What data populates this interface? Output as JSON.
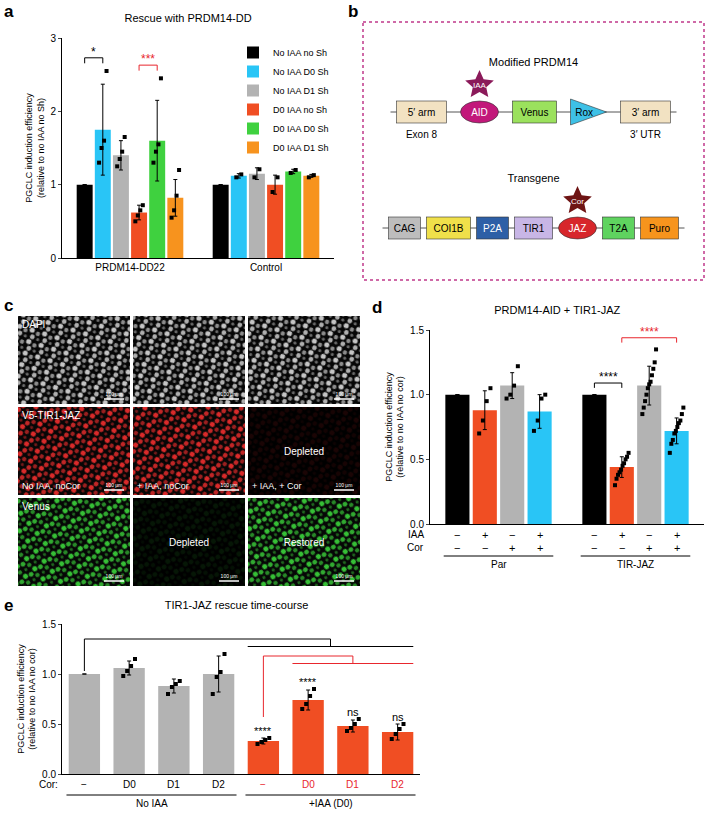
{
  "chart_data": [
    {
      "panel": "a",
      "type": "bar",
      "title": "Rescue with PRDM14-DD",
      "y_label": [
        "PGCLC induction efficiency",
        "(relative to no IAA no Sh)"
      ],
      "categories": [
        "PRDM14-DD22",
        "Control"
      ],
      "ylim": [
        0,
        3
      ],
      "yticks": [
        0,
        1,
        2,
        3
      ],
      "legend": "upper right",
      "series": [
        {
          "name": "No IAA no Sh",
          "color": "#000000",
          "values": [
            1.0,
            1.0
          ],
          "error": [
            0,
            0
          ],
          "points": [
            null,
            null
          ]
        },
        {
          "name": "No IAA D0 Sh",
          "color": "#29c5f6",
          "values": [
            1.75,
            1.12
          ],
          "error": [
            0.62,
            0.03
          ],
          "points": [
            [
              1.3,
              1.5,
              1.6,
              2.55
            ],
            [
              1.1,
              1.14
            ]
          ]
        },
        {
          "name": "No IAA D1 Sh",
          "color": "#b3b3b3",
          "values": [
            1.4,
            1.15
          ],
          "error": [
            0.2,
            0.08
          ],
          "points": [
            [
              1.25,
              1.35,
              1.45,
              1.65
            ],
            [
              1.1,
              1.21
            ]
          ]
        },
        {
          "name": "D0 IAA no Sh",
          "color": "#f04e23",
          "values": [
            0.62,
            1.0
          ],
          "error": [
            0.1,
            0.13
          ],
          "points": [
            [
              0.5,
              0.58,
              0.65,
              0.72
            ],
            [
              0.9,
              1.1
            ]
          ]
        },
        {
          "name": "D0 IAA D0 Sh",
          "color": "#3fd13f",
          "values": [
            1.6,
            1.18
          ],
          "error": [
            0.55,
            0.03
          ],
          "points": [
            [
              1.3,
              1.45,
              1.55,
              2.45
            ],
            [
              1.16,
              1.2
            ]
          ]
        },
        {
          "name": "D0 IAA D1 Sh",
          "color": "#f7931e",
          "values": [
            0.82,
            1.12
          ],
          "error": [
            0.25,
            0.02
          ],
          "points": [
            [
              0.55,
              0.65,
              0.85,
              1.2
            ],
            [
              1.1,
              1.13
            ]
          ]
        }
      ],
      "significance": [
        {
          "text": "*",
          "color": "#000000",
          "category": "PRDM14-DD22",
          "from": 0,
          "to": 1
        },
        {
          "text": "***",
          "color": "#e8262d",
          "category": "PRDM14-DD22",
          "from": 3,
          "to": 4
        }
      ]
    },
    {
      "panel": "d",
      "type": "bar",
      "title": "PRDM14-AID + TIR1-JAZ",
      "y_label": [
        "PGCLC induction efficiency",
        "(relative to no IAA no cor)"
      ],
      "categories": [
        "Par",
        "TIR-JAZ"
      ],
      "ylim": [
        0,
        1.5
      ],
      "yticks": [
        {
          "value": 0,
          "label": "0.0"
        },
        {
          "value": 0.5,
          "label": "0.5"
        },
        {
          "value": 1,
          "label": "1.0"
        },
        {
          "value": 1.5,
          "label": "1.5"
        }
      ],
      "series": [
        {
          "color": "#000000",
          "values": [
            1.0,
            1.0
          ],
          "error": [
            0,
            0
          ],
          "points": [
            null,
            null
          ]
        },
        {
          "color": "#f04e23",
          "values": [
            0.88,
            0.44
          ],
          "error": [
            0.15,
            0.08
          ],
          "points": [
            [
              0.7,
              0.8,
              0.95,
              1.05
            ],
            [
              0.3,
              0.35,
              0.38,
              0.4,
              0.42,
              0.45,
              0.47,
              0.5,
              0.52,
              0.55
            ]
          ]
        },
        {
          "color": "#b3b3b3",
          "values": [
            1.07,
            1.07
          ],
          "error": [
            0.1,
            0.15
          ],
          "points": [
            [
              0.97,
              1.0,
              1.07,
              1.22
            ],
            [
              0.85,
              0.9,
              0.95,
              1.0,
              1.05,
              1.08,
              1.1,
              1.15,
              1.2,
              1.25,
              1.35
            ]
          ]
        },
        {
          "color": "#29c5f6",
          "values": [
            0.87,
            0.72
          ],
          "error": [
            0.13,
            0.1
          ],
          "points": [
            [
              0.72,
              0.8,
              0.97,
              1.0
            ],
            [
              0.55,
              0.62,
              0.65,
              0.7,
              0.72,
              0.75,
              0.78,
              0.8,
              0.85,
              0.9
            ]
          ]
        }
      ],
      "conditions": [
        {
          "label": "IAA",
          "marks": [
            "−",
            "+",
            "−",
            "+"
          ]
        },
        {
          "label": "Cor",
          "marks": [
            "−",
            "−",
            "+",
            "+"
          ]
        }
      ],
      "significance": [
        {
          "text": "****",
          "color": "#000000",
          "category": "TIR-JAZ",
          "from": 0,
          "to": 1
        },
        {
          "text": "****",
          "color": "#e8262d",
          "category": "TIR-JAZ",
          "from": 1,
          "to": 3
        }
      ]
    },
    {
      "panel": "e",
      "type": "bar",
      "title": "TIR1-JAZ rescue time-course",
      "y_label": [
        "PGCLC induction efficiency",
        "(relative to no IAA no cor)"
      ],
      "row_label": "Cor:",
      "categories": [
        "−",
        "D0",
        "D1",
        "D2",
        "−",
        "D0",
        "D1",
        "D2"
      ],
      "values": [
        1.0,
        1.06,
        0.88,
        1.0,
        0.33,
        0.74,
        0.48,
        0.42
      ],
      "error": [
        0,
        0.07,
        0.07,
        0.18,
        0.03,
        0.1,
        0.06,
        0.08
      ],
      "points": [
        null,
        [
          0.98,
          1.03,
          1.08,
          1.15
        ],
        [
          0.8,
          0.87,
          0.9,
          0.93
        ],
        [
          0.8,
          0.97,
          1.02,
          1.2
        ],
        [
          0.3,
          0.32,
          0.34,
          0.36
        ],
        [
          0.65,
          0.7,
          0.78,
          0.85
        ],
        [
          0.43,
          0.46,
          0.5,
          0.55
        ],
        [
          0.35,
          0.4,
          0.45,
          0.5
        ]
      ],
      "colors": [
        "#b3b3b3",
        "#b3b3b3",
        "#b3b3b3",
        "#b3b3b3",
        "#f04e23",
        "#f04e23",
        "#f04e23",
        "#f04e23"
      ],
      "ylim": [
        0,
        1.5
      ],
      "yticks": [
        {
          "value": 0,
          "label": "0.0"
        },
        {
          "value": 0.5,
          "label": "0.5"
        },
        {
          "value": 1,
          "label": "1.0"
        },
        {
          "value": 1.5,
          "label": "1.5"
        }
      ],
      "groups": [
        {
          "label": "No IAA",
          "from": 0,
          "to": 3,
          "color": "#000000"
        },
        {
          "label": "+IAA (D0)",
          "from": 4,
          "to": 7,
          "color": "#e8262d"
        }
      ],
      "bar_annotations": [
        null,
        null,
        null,
        null,
        "****",
        "****",
        "ns",
        "ns"
      ],
      "brackets": [
        {
          "from": 0,
          "to": [
            4,
            7
          ],
          "color": "#000000"
        },
        {
          "from": 4,
          "to": [
            5,
            7
          ],
          "color": "#e8262d"
        }
      ]
    }
  ],
  "diagram": {
    "panel": "b",
    "border_color": "#c0398a",
    "constructs": [
      {
        "title": "Modified PRDM14",
        "elements": [
          {
            "label": "5′ arm",
            "shape": "box",
            "color": "#f2e2c2",
            "text_color": "#000000",
            "below": "Exon 8"
          },
          {
            "label": "AID",
            "shape": "ellipse",
            "color": "#c2187a",
            "text_color": "#ffffff",
            "ligand": {
              "label": "IAA",
              "color": "#8b1a5a"
            }
          },
          {
            "label": "Venus",
            "shape": "box",
            "color": "#9be15d",
            "text_color": "#000000"
          },
          {
            "label": "Rox",
            "shape": "triangle",
            "color": "#3ec1e6",
            "text_color": "#000000"
          },
          {
            "label": "3′ arm",
            "shape": "box",
            "color": "#f2e2c2",
            "text_color": "#000000",
            "below": "3′ UTR"
          }
        ]
      },
      {
        "title": "Transgene",
        "elements": [
          {
            "label": "CAG",
            "shape": "box",
            "color": "#bdbdbd",
            "text_color": "#000000"
          },
          {
            "label": "COI1B",
            "shape": "box",
            "color": "#f0e04a",
            "text_color": "#000000"
          },
          {
            "label": "P2A",
            "shape": "box",
            "color": "#2d5fa6",
            "text_color": "#ffffff"
          },
          {
            "label": "TIR1",
            "shape": "box",
            "color": "#c8b6e6",
            "text_color": "#000000"
          },
          {
            "label": "JAZ",
            "shape": "ellipse",
            "color": "#d7262b",
            "text_color": "#ffffff",
            "ligand": {
              "label": "Cor",
              "color": "#6e1414"
            }
          },
          {
            "label": "T2A",
            "shape": "box",
            "color": "#5fd35f",
            "text_color": "#000000"
          },
          {
            "label": "Puro",
            "shape": "box",
            "color": "#f7941d",
            "text_color": "#000000"
          }
        ]
      }
    ]
  },
  "images": {
    "panel": "c",
    "scale_bar": "100 μm",
    "rows": [
      {
        "channel": "DAPI",
        "color": "#e6e6e6",
        "cells": [
          {
            "caption": null,
            "note": null,
            "signal": true
          },
          {
            "caption": null,
            "note": null,
            "signal": true
          },
          {
            "caption": null,
            "note": null,
            "signal": true
          }
        ]
      },
      {
        "channel": "V5-TIR1-JAZ",
        "color": "#ff3030",
        "cells": [
          {
            "caption": "No IAA, noCor",
            "note": null,
            "signal": true
          },
          {
            "caption": "+ IAA, noCor",
            "note": null,
            "signal": true
          },
          {
            "caption": "+ IAA, + Cor",
            "note": "Depleted",
            "signal": false
          }
        ]
      },
      {
        "channel": "Venus",
        "color": "#3ee03e",
        "cells": [
          {
            "caption": null,
            "note": null,
            "signal": true
          },
          {
            "caption": null,
            "note": "Depleted",
            "signal": false
          },
          {
            "caption": null,
            "note": "Restored",
            "signal": true
          }
        ]
      }
    ]
  }
}
